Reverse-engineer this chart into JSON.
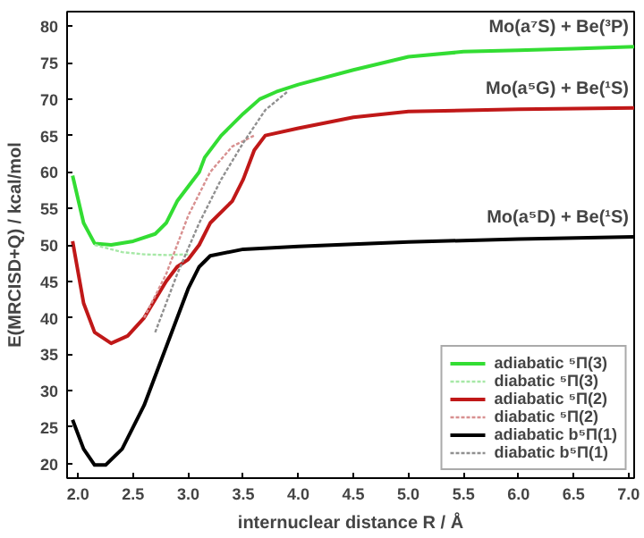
{
  "chart_data": {
    "type": "line",
    "xlabel": "internuclear distance R / Å",
    "ylabel": "E(MRCISD+Q) / kcal/mol",
    "xlim": [
      1.9,
      7.05
    ],
    "ylim": [
      18,
      82
    ],
    "xticks": [
      {
        "value": 2.0,
        "label": "2.0"
      },
      {
        "value": 2.5,
        "label": "2.5"
      },
      {
        "value": 3.0,
        "label": "3.0"
      },
      {
        "value": 3.5,
        "label": "3.5"
      },
      {
        "value": 4.0,
        "label": "4.0"
      },
      {
        "value": 4.5,
        "label": "4.5"
      },
      {
        "value": 5.0,
        "label": "5.0"
      },
      {
        "value": 5.5,
        "label": "5.5"
      },
      {
        "value": 6.0,
        "label": "6.0"
      },
      {
        "value": 6.5,
        "label": "6.5"
      },
      {
        "value": 7.0,
        "label": "7.0"
      }
    ],
    "yticks": [
      20,
      25,
      30,
      35,
      40,
      45,
      50,
      55,
      60,
      65,
      70,
      75,
      80
    ],
    "grid": false,
    "legend": "bottom right",
    "marker": "none",
    "series": [
      {
        "name": "adiabatic ⁵Π(3)",
        "color": "#33dd33",
        "line_style": "solid",
        "x": [
          1.95,
          2.05,
          2.15,
          2.3,
          2.5,
          2.7,
          2.8,
          2.9,
          3.0,
          3.1,
          3.15,
          3.3,
          3.5,
          3.65,
          3.8,
          4.0,
          4.5,
          5.0,
          5.5,
          6.0,
          6.5,
          7.05
        ],
        "values": [
          59.5,
          53,
          50.2,
          50,
          50.5,
          51.5,
          53,
          56,
          58,
          60,
          62,
          65,
          68,
          70,
          71,
          72,
          74,
          75.8,
          76.5,
          76.7,
          76.9,
          77.2
        ]
      },
      {
        "name": "diabatic ⁵Π(3)",
        "color": "#a6e8a6",
        "line_style": "dotted",
        "x": [
          2.15,
          2.4,
          2.6,
          2.8,
          3.0
        ],
        "values": [
          50,
          49,
          48.7,
          48.6,
          48.7
        ]
      },
      {
        "name": "adiabatic ⁵Π(2)",
        "color": "#c01818",
        "line_style": "solid",
        "x": [
          1.95,
          2.05,
          2.15,
          2.3,
          2.45,
          2.6,
          2.8,
          2.9,
          3.0,
          3.1,
          3.2,
          3.4,
          3.5,
          3.6,
          3.7,
          4.0,
          4.5,
          5.0,
          6.0,
          7.05
        ],
        "values": [
          50.5,
          42,
          38,
          36.5,
          37.5,
          40,
          45,
          47,
          48,
          50,
          53,
          56,
          59,
          63,
          65,
          66,
          67.5,
          68.3,
          68.6,
          68.8
        ]
      },
      {
        "name": "diabatic ⁵Π(2)",
        "color": "#d89090",
        "line_style": "dotted",
        "x": [
          2.6,
          2.8,
          3.0,
          3.2,
          3.4,
          3.6
        ],
        "values": [
          40,
          46,
          54,
          60,
          63.5,
          65
        ]
      },
      {
        "name": "adiabatic b⁵Π(1)",
        "color": "#000000",
        "line_style": "solid",
        "x": [
          1.95,
          2.05,
          2.15,
          2.25,
          2.4,
          2.6,
          2.8,
          3.0,
          3.1,
          3.2,
          3.5,
          4.0,
          5.0,
          6.0,
          7.05
        ],
        "values": [
          26,
          22,
          19.8,
          19.8,
          22,
          28,
          36,
          44,
          47,
          48.5,
          49.4,
          49.8,
          50.4,
          50.8,
          51.1
        ]
      },
      {
        "name": "diabatic b⁵Π(1)",
        "color": "#909090",
        "line_style": "dotted",
        "x": [
          2.7,
          2.9,
          3.1,
          3.3,
          3.5,
          3.7,
          3.9
        ],
        "values": [
          38,
          46,
          53,
          59,
          64,
          68.5,
          71
        ]
      }
    ],
    "annotations": [
      "Mo(a⁷S) + Be(³P)",
      "Mo(a⁵G) + Be(¹S)",
      "Mo(a⁵D) + Be(¹S)"
    ]
  }
}
